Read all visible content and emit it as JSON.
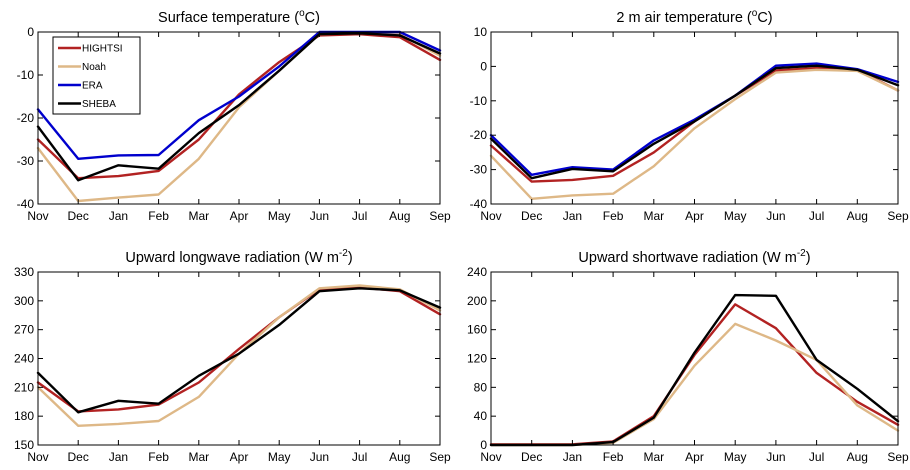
{
  "chart_data": [
    {
      "type": "line",
      "title_main": "Surface temperature (",
      "title_sup": "o",
      "title_end": "C)",
      "categories": [
        "Nov",
        "Dec",
        "Jan",
        "Feb",
        "Mar",
        "Apr",
        "May",
        "Jun",
        "Jul",
        "Aug",
        "Sep"
      ],
      "ylim": [
        -40,
        0
      ],
      "yticks": [
        -40,
        -30,
        -20,
        -10,
        0
      ],
      "legend": {
        "position": "top-left"
      },
      "series": [
        {
          "name": "HIGHTSI",
          "color": "#b22222",
          "values": [
            -25,
            -34,
            -33.5,
            -32.3,
            -25,
            -14.5,
            -7,
            -0.8,
            -0.5,
            -1.2,
            -6.5
          ]
        },
        {
          "name": "Noah",
          "color": "#deb887",
          "values": [
            -27,
            -39.3,
            -38.5,
            -37.8,
            -29.5,
            -17.5,
            -9,
            -0.5,
            -0.2,
            -0.6,
            -5.5
          ]
        },
        {
          "name": "ERA",
          "color": "#0000cd",
          "values": [
            -18,
            -29.5,
            -28.7,
            -28.6,
            -20.5,
            -15,
            -8,
            0,
            0,
            0,
            -4.3
          ]
        },
        {
          "name": "SHEBA",
          "color": "#000000",
          "values": [
            -22,
            -34.5,
            -31,
            -31.8,
            -23.5,
            -17,
            -9,
            -0.5,
            -0.3,
            -0.8,
            -5
          ]
        }
      ]
    },
    {
      "type": "line",
      "title_main": "2 m air temperature (",
      "title_sup": "o",
      "title_end": "C)",
      "categories": [
        "Nov",
        "Dec",
        "Jan",
        "Feb",
        "Mar",
        "Apr",
        "May",
        "Jun",
        "Jul",
        "Aug",
        "Sep"
      ],
      "ylim": [
        -40,
        10
      ],
      "yticks": [
        -40,
        -30,
        -20,
        -10,
        0,
        10
      ],
      "series": [
        {
          "name": "HIGHTSI",
          "color": "#b22222",
          "values": [
            -23,
            -33.5,
            -33,
            -31.8,
            -25,
            -16,
            -8.5,
            -1.2,
            -0.5,
            -1,
            -7
          ]
        },
        {
          "name": "Noah",
          "color": "#deb887",
          "values": [
            -26,
            -38.5,
            -37.5,
            -37,
            -29,
            -18,
            -9.5,
            -1.8,
            -1,
            -1.3,
            -7
          ]
        },
        {
          "name": "ERA",
          "color": "#0000cd",
          "values": [
            -20,
            -31.5,
            -29.3,
            -30,
            -21.5,
            -15.5,
            -8.5,
            0.2,
            0.8,
            -0.8,
            -4.5
          ]
        },
        {
          "name": "SHEBA",
          "color": "#000000",
          "values": [
            -21,
            -32.5,
            -29.8,
            -30.5,
            -22.5,
            -16,
            -8.5,
            -0.5,
            0.2,
            -1,
            -5.5
          ]
        }
      ]
    },
    {
      "type": "line",
      "title_main": "Upward longwave radiation (W m",
      "title_sup": "-2",
      "title_end": ")",
      "categories": [
        "Nov",
        "Dec",
        "Jan",
        "Feb",
        "Mar",
        "Apr",
        "May",
        "Jun",
        "Jul",
        "Aug",
        "Sep"
      ],
      "ylim": [
        150,
        330
      ],
      "yticks": [
        150,
        180,
        210,
        240,
        270,
        300,
        330
      ],
      "series": [
        {
          "name": "HIGHTSI",
          "color": "#b22222",
          "values": [
            215,
            185,
            187,
            192,
            215,
            250,
            283,
            312,
            314,
            310,
            286
          ]
        },
        {
          "name": "Noah",
          "color": "#deb887",
          "values": [
            210,
            170,
            172,
            175,
            200,
            245,
            283,
            313,
            316,
            312,
            290
          ]
        },
        {
          "name": "SHEBA",
          "color": "#000000",
          "values": [
            225,
            184,
            196,
            193,
            222,
            245,
            275,
            310,
            313,
            311,
            293
          ]
        }
      ]
    },
    {
      "type": "line",
      "title_main": "Upward shortwave radiation (W m",
      "title_sup": "-2",
      "title_end": ")",
      "categories": [
        "Nov",
        "Dec",
        "Jan",
        "Feb",
        "Mar",
        "Apr",
        "May",
        "Jun",
        "Jul",
        "Aug",
        "Sep"
      ],
      "ylim": [
        0,
        240
      ],
      "yticks": [
        0,
        40,
        80,
        120,
        160,
        200,
        240
      ],
      "series": [
        {
          "name": "HIGHTSI",
          "color": "#b22222",
          "values": [
            1,
            1,
            1,
            5,
            40,
            125,
            195,
            162,
            100,
            60,
            28
          ]
        },
        {
          "name": "Noah",
          "color": "#deb887",
          "values": [
            0,
            0,
            0,
            3,
            36,
            110,
            168,
            145,
            118,
            55,
            20
          ]
        },
        {
          "name": "SHEBA",
          "color": "#000000",
          "values": [
            0,
            0,
            0,
            4,
            38,
            128,
            208,
            207,
            118,
            78,
            33
          ]
        }
      ]
    }
  ]
}
